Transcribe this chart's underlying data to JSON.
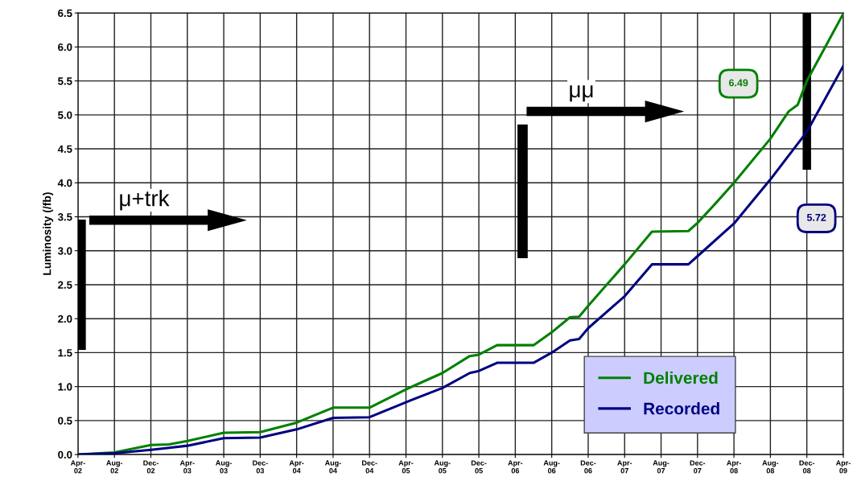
{
  "chart_data": {
    "type": "line",
    "ylabel": "Luminosity (/fb)",
    "xlim": [
      "2002-04",
      "2009-04"
    ],
    "xticks": [
      {
        "value": "2002-04",
        "label": "Apr-\n02"
      },
      {
        "value": "2002-08",
        "label": "Aug-\n02"
      },
      {
        "value": "2002-12",
        "label": "Dec-\n02"
      },
      {
        "value": "2003-04",
        "label": "Apr-\n03"
      },
      {
        "value": "2003-08",
        "label": "Aug-\n03"
      },
      {
        "value": "2003-12",
        "label": "Dec-\n03"
      },
      {
        "value": "2004-04",
        "label": "Apr-\n04"
      },
      {
        "value": "2004-08",
        "label": "Aug-\n04"
      },
      {
        "value": "2004-12",
        "label": "Dec-\n04"
      },
      {
        "value": "2005-04",
        "label": "Apr-\n05"
      },
      {
        "value": "2005-08",
        "label": "Aug-\n05"
      },
      {
        "value": "2005-12",
        "label": "Dec-\n05"
      },
      {
        "value": "2006-04",
        "label": "Apr-\n06"
      },
      {
        "value": "2006-08",
        "label": "Aug-\n06"
      },
      {
        "value": "2006-12",
        "label": "Dec-\n06"
      },
      {
        "value": "2007-04",
        "label": "Apr-\n07"
      },
      {
        "value": "2007-08",
        "label": "Aug-\n07"
      },
      {
        "value": "2007-12",
        "label": "Dec-\n07"
      },
      {
        "value": "2008-04",
        "label": "Apr-\n08"
      },
      {
        "value": "2008-08",
        "label": "Aug-\n08"
      },
      {
        "value": "2008-12",
        "label": "Dec-\n08"
      },
      {
        "value": "2009-04",
        "label": "Apr-\n09"
      }
    ],
    "ylim": [
      0,
      6.5
    ],
    "yticks": [
      {
        "value": 0,
        "label": "0.0"
      },
      {
        "value": 0.5,
        "label": "0.5"
      },
      {
        "value": 1,
        "label": "1.0"
      },
      {
        "value": 1.5,
        "label": "1.5"
      },
      {
        "value": 2,
        "label": "2.0"
      },
      {
        "value": 2.5,
        "label": "2.5"
      },
      {
        "value": 3,
        "label": "3.0"
      },
      {
        "value": 3.5,
        "label": "3.5"
      },
      {
        "value": 4,
        "label": "4.0"
      },
      {
        "value": 4.5,
        "label": "4.5"
      },
      {
        "value": 5,
        "label": "5.0"
      },
      {
        "value": 5.5,
        "label": "5.5"
      },
      {
        "value": 6,
        "label": "6.0"
      },
      {
        "value": 6.5,
        "label": "6.5"
      }
    ],
    "grid": true,
    "legend": "bottom right",
    "marker": "none",
    "line_style": "solid",
    "series": [
      {
        "name": "Delivered",
        "color": "#008000",
        "x": [
          "2002-04",
          "2002-08",
          "2002-12",
          "2003-02",
          "2003-04",
          "2003-08",
          "2003-12",
          "2004-04",
          "2004-08",
          "2004-12",
          "2005-04",
          "2005-08",
          "2005-11",
          "2005-12",
          "2006-02",
          "2006-06",
          "2006-08",
          "2006-10",
          "2006-11",
          "2006-12",
          "2007-04",
          "2007-07",
          "2007-11",
          "2007-12",
          "2008-02",
          "2008-04",
          "2008-08",
          "2008-10",
          "2008-11",
          "2008-12",
          "2009-04"
        ],
        "values": [
          0,
          0.03,
          0.14,
          0.15,
          0.2,
          0.32,
          0.33,
          0.47,
          0.69,
          0.69,
          0.96,
          1.2,
          1.45,
          1.47,
          1.61,
          1.61,
          1.8,
          2.02,
          2.03,
          2.19,
          2.8,
          3.28,
          3.29,
          3.41,
          3.7,
          4.0,
          4.65,
          5.05,
          5.15,
          5.5,
          6.49
        ]
      },
      {
        "name": "Recorded",
        "color": "#000080",
        "x": [
          "2002-04",
          "2002-08",
          "2002-12",
          "2003-02",
          "2003-04",
          "2003-08",
          "2003-12",
          "2004-04",
          "2004-08",
          "2004-12",
          "2005-04",
          "2005-08",
          "2005-11",
          "2005-12",
          "2006-02",
          "2006-06",
          "2006-08",
          "2006-10",
          "2006-11",
          "2006-12",
          "2007-04",
          "2007-07",
          "2007-11",
          "2007-12",
          "2008-04",
          "2008-08",
          "2008-12",
          "2009-04"
        ],
        "values": [
          0,
          0.02,
          0.07,
          0.1,
          0.13,
          0.24,
          0.25,
          0.37,
          0.54,
          0.55,
          0.77,
          0.98,
          1.2,
          1.23,
          1.35,
          1.35,
          1.5,
          1.68,
          1.7,
          1.86,
          2.33,
          2.8,
          2.8,
          2.92,
          3.4,
          4.05,
          4.75,
          5.72
        ]
      }
    ],
    "annotations": [
      "μ+trk",
      "μμ",
      "6.49",
      "5.72"
    ]
  }
}
